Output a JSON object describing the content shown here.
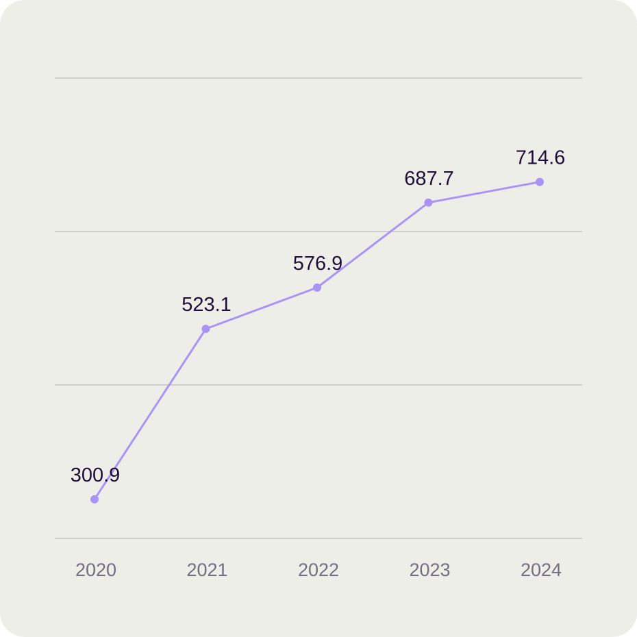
{
  "chart_data": {
    "type": "line",
    "title": "",
    "xlabel": "",
    "ylabel": "",
    "categories": [
      "2020",
      "2021",
      "2022",
      "2023",
      "2024"
    ],
    "series": [
      {
        "values": [
          300.9,
          523.1,
          576.9,
          687.7,
          714.6
        ]
      }
    ],
    "data_labels": [
      "300.9",
      "523.1",
      "576.9",
      "687.7",
      "714.6"
    ],
    "ylim": [
      250,
      850
    ],
    "gridlines": [
      250,
      450,
      650,
      850
    ],
    "grid": true,
    "legend": "none",
    "colors": {
      "background": "#eeeee9",
      "line": "#a994f5",
      "grid": "#c4c3c6",
      "label": "#1f0f38",
      "tick": "#756d80"
    }
  }
}
